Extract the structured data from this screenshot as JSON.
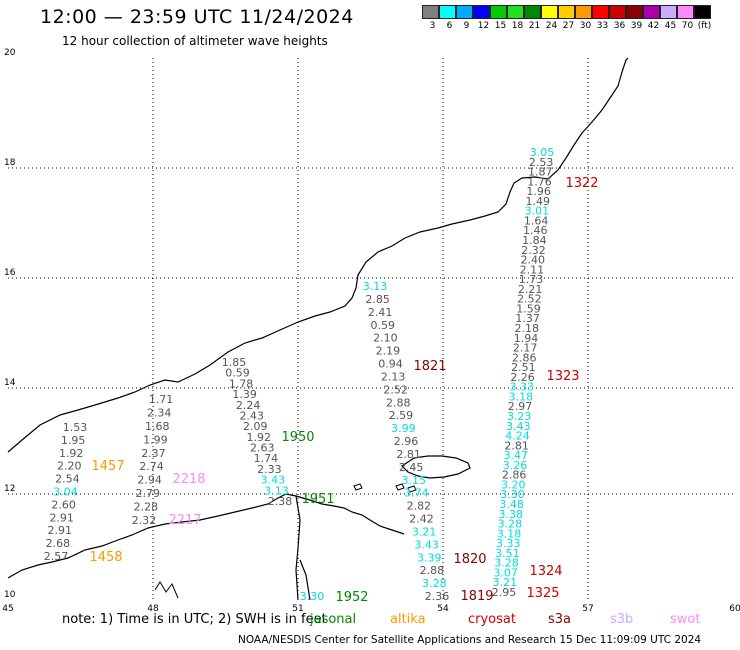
{
  "header": {
    "title": "12:00 — 23:59 UTC 11/24/2024",
    "subtitle": "12 hour collection of altimeter wave heights"
  },
  "colorscale": {
    "colors": [
      "#808080",
      "#00ffff",
      "#00aaff",
      "#0000ff",
      "#00cc00",
      "#22dd22",
      "#008800",
      "#ffff00",
      "#ffcc00",
      "#ff9900",
      "#ff0000",
      "#cc0000",
      "#880000",
      "#aa00aa",
      "#ccaaff",
      "#ff88ff",
      "#000000"
    ],
    "labels": [
      "3",
      "6",
      "9",
      "12",
      "15",
      "18",
      "21",
      "24",
      "27",
      "30",
      "33",
      "36",
      "39",
      "42",
      "45",
      "70",
      "(ft)"
    ]
  },
  "map": {
    "lat_ticks": [
      "20",
      "18",
      "16",
      "14",
      "12",
      "10"
    ],
    "lon_ticks": [
      "45",
      "48",
      "51",
      "54",
      "57",
      "60"
    ],
    "tracks": [
      {
        "name": "track-48",
        "values": [
          "1.53",
          "1.95",
          "1.92",
          "2.20",
          "2.54",
          "3.04",
          "2.60",
          "2.91",
          "2.91",
          "2.68",
          "2.57"
        ],
        "highlight": [
          5
        ],
        "time": "1458",
        "time_color": "#ff9900",
        "time2": "1457",
        "time2_color": "#ff9900"
      },
      {
        "name": "track-49",
        "values": [
          "1.71",
          "2.34",
          "1.68",
          "1.99",
          "2.37",
          "2.74",
          "2.94",
          "2.79",
          "2.28",
          "2.32"
        ],
        "highlight": [],
        "time": "2218",
        "time_color": "#ff88ff",
        "time2": "2217",
        "time2_color": "#ff88ff"
      },
      {
        "name": "track-51",
        "values": [
          "1.85",
          "0.59",
          "1.78",
          "1.39",
          "2.24",
          "2.43",
          "2.09",
          "1.92",
          "2.63",
          "1.74",
          "2.33",
          "3.43",
          "3.13",
          "2.38"
        ],
        "highlight": [
          11,
          12
        ],
        "time": "1950",
        "time_color": "#008800",
        "time2": "1951",
        "time2_color": "#008800"
      },
      {
        "name": "track-53",
        "values": [
          "3.13",
          "2.85",
          "2.41",
          "0.59",
          "2.10",
          "2.19",
          "0.94",
          "2.13",
          "2.52",
          "2.88",
          "2.59",
          "3.99",
          "2.96",
          "2.81",
          "2.45",
          "3.15",
          "3.74",
          "2.82",
          "2.42",
          "3.21",
          "3.43",
          "3.39",
          "2.88",
          "3.28",
          "2.36"
        ],
        "highlight": [
          0,
          11,
          15,
          16,
          19,
          20,
          21,
          23
        ],
        "time": "1821",
        "time_color": "#880000",
        "time2": "1820",
        "time2_color": "#880000",
        "time3": "1819",
        "time3_color": "#880000"
      },
      {
        "name": "track-56",
        "values": [
          "3.05",
          "2.53",
          "1.87",
          "1.76",
          "1.96",
          "1.49",
          "3.01",
          "1.64",
          "1.46",
          "1.84",
          "2.32",
          "2.40",
          "2.11",
          "1.73",
          "2.21",
          "2.52",
          "1.59",
          "1.37",
          "2.18",
          "1.94",
          "2.17",
          "2.86",
          "2.51",
          "2.26",
          "3.33",
          "3.18",
          "2.97",
          "3.23",
          "3.43",
          "4.24",
          "2.81",
          "3.47",
          "3.26",
          "2.86",
          "3.20",
          "3.30",
          "3.48",
          "3.38",
          "3.28",
          "3.18",
          "3.33",
          "3.51",
          "3.28",
          "3.07",
          "3.21",
          "2.95"
        ],
        "highlight": [
          0,
          6,
          24,
          25,
          27,
          28,
          29,
          31,
          32,
          34,
          35,
          36,
          37,
          38,
          39,
          40,
          41,
          42,
          43,
          44
        ],
        "time": "1322",
        "time_color": "#cc0000",
        "time2": "1323",
        "time2_color": "#cc0000",
        "time3": "1324",
        "time3_color": "#cc0000",
        "time4": "1325",
        "time4_color": "#cc0000"
      }
    ],
    "stray": {
      "value": "3.30",
      "time": "1952"
    }
  },
  "footer": {
    "note": "note:  1) Time is in UTC;  2) SWH is in feet",
    "legend": [
      {
        "label": "jasonal",
        "color": "#008800"
      },
      {
        "label": "altika",
        "color": "#ff9900"
      },
      {
        "label": "cryosat",
        "color": "#cc0000"
      },
      {
        "label": "s3a",
        "color": "#880000"
      },
      {
        "label": "s3b",
        "color": "#ccaaff"
      },
      {
        "label": "swot",
        "color": "#ff88ff"
      }
    ],
    "credit": "NOAA/NESDIS Center for Satellite Applications and Research     15 Dec 11:09:09 UTC 2024"
  }
}
